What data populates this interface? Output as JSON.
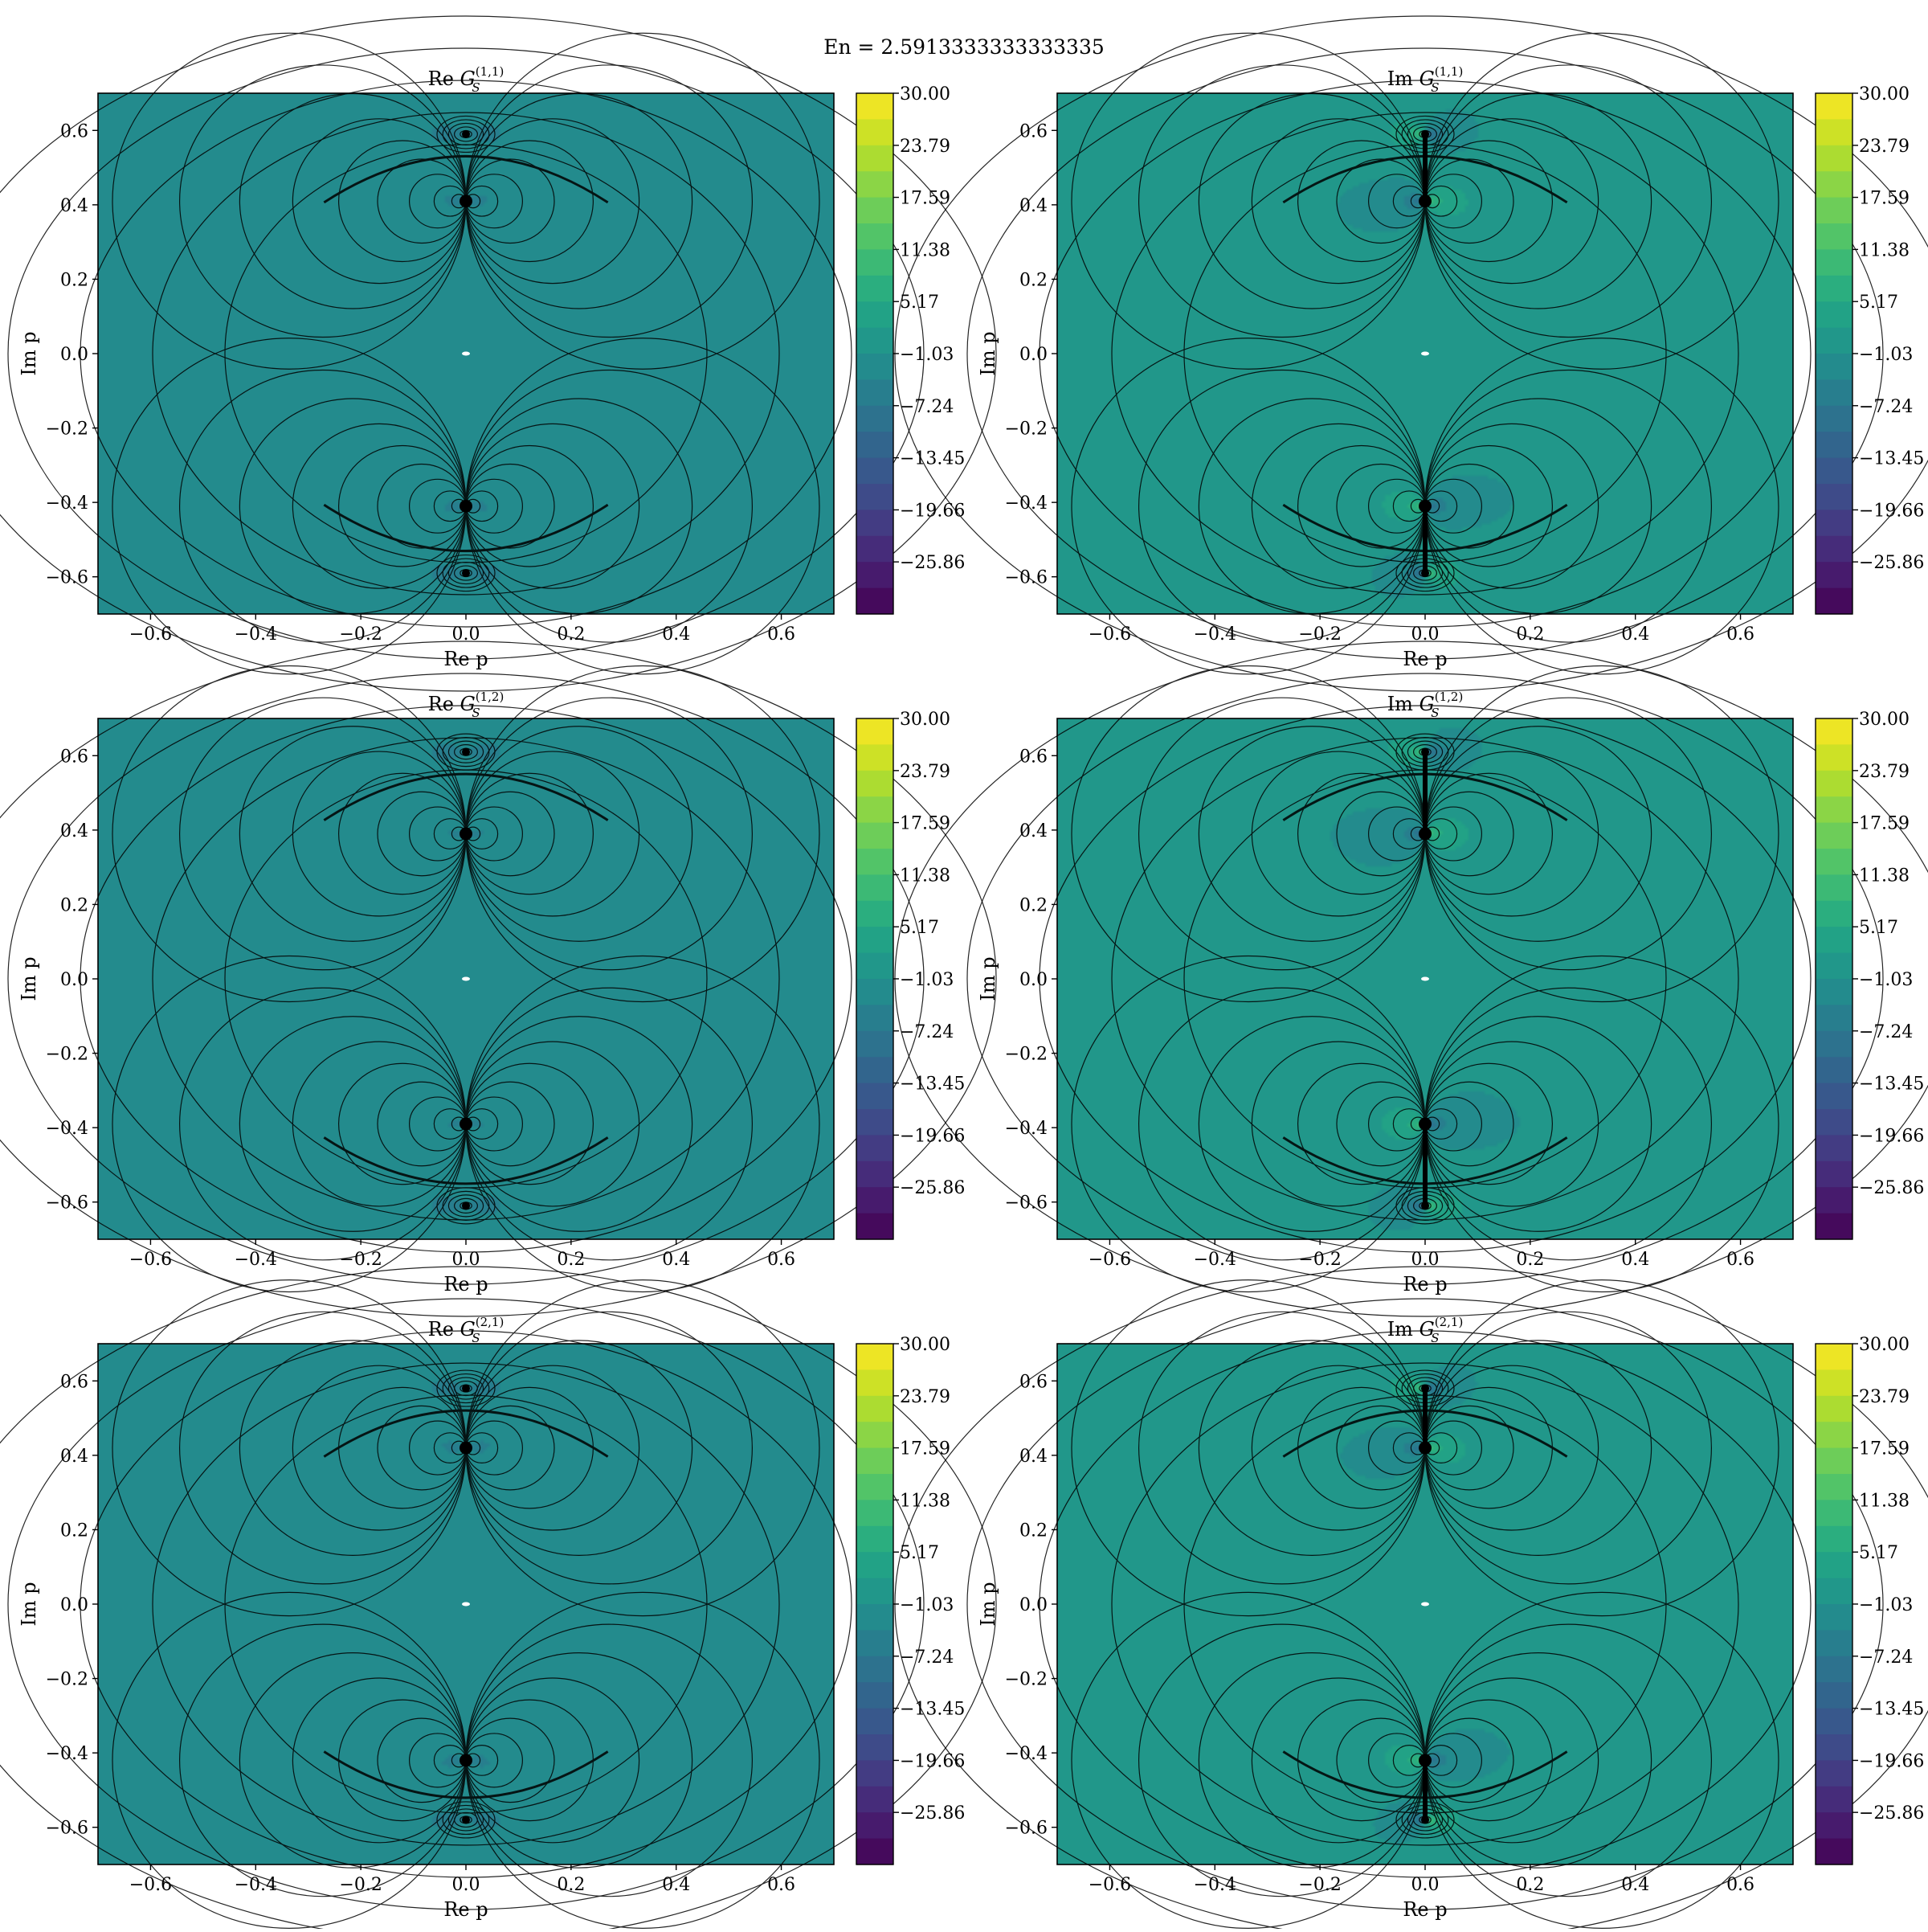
{
  "figure_title": "En = 2.5913333333333335",
  "colormap": {
    "name": "viridis",
    "stops": [
      "#440154",
      "#482475",
      "#414487",
      "#355f8d",
      "#2a788e",
      "#21918c",
      "#22a884",
      "#44bf70",
      "#7ad151",
      "#bddf26",
      "#fde725"
    ],
    "vmin": -32.07,
    "vmax": 30.0,
    "tick_labels": [
      "30.00",
      "23.79",
      "17.59",
      "11.38",
      "5.17",
      "−1.03",
      "−7.24",
      "−13.45",
      "−19.66",
      "−25.86"
    ],
    "tick_values": [
      30.0,
      23.79,
      17.59,
      11.38,
      5.17,
      -1.03,
      -7.24,
      -13.45,
      -19.66,
      -25.86
    ]
  },
  "axes_common": {
    "xlabel": "Re p",
    "ylabel": "Im p",
    "xlim": [
      -0.7,
      0.7
    ],
    "ylim": [
      -0.7,
      0.7
    ],
    "x_tick_values": [
      -0.6,
      -0.4,
      -0.2,
      0.0,
      0.2,
      0.4,
      0.6
    ],
    "x_tick_labels": [
      "−0.6",
      "−0.4",
      "−0.2",
      "0.0",
      "0.2",
      "0.4",
      "0.6"
    ],
    "y_tick_values": [
      0.6,
      0.4,
      0.2,
      0.0,
      -0.2,
      -0.4,
      -0.6
    ],
    "y_tick_labels": [
      "0.6",
      "0.4",
      "0.2",
      "0.0",
      "−0.2",
      "−0.4",
      "−0.6"
    ]
  },
  "chart_data": [
    {
      "type": "heatmap",
      "title_prefix": "Re",
      "title_symbol": "G",
      "title_sub": "S",
      "title_sup": "(1,1)",
      "part": "real",
      "pole_inner": 0.41,
      "pole_outer": 0.59,
      "plateau": -4.0
    },
    {
      "type": "heatmap",
      "title_prefix": "Im",
      "title_symbol": "G",
      "title_sub": "S",
      "title_sup": "(1,1)",
      "part": "imag",
      "pole_inner": 0.41,
      "pole_outer": 0.59,
      "plateau": 0.0
    },
    {
      "type": "heatmap",
      "title_prefix": "Re",
      "title_symbol": "G",
      "title_sub": "S",
      "title_sup": "(1,2)",
      "part": "real",
      "pole_inner": 0.39,
      "pole_outer": 0.61,
      "plateau": -4.0
    },
    {
      "type": "heatmap",
      "title_prefix": "Im",
      "title_symbol": "G",
      "title_sub": "S",
      "title_sup": "(1,2)",
      "part": "imag",
      "pole_inner": 0.39,
      "pole_outer": 0.61,
      "plateau": 0.0
    },
    {
      "type": "heatmap",
      "title_prefix": "Re",
      "title_symbol": "G",
      "title_sub": "S",
      "title_sup": "(2,1)",
      "part": "real",
      "pole_inner": 0.42,
      "pole_outer": 0.58,
      "plateau": -4.0
    },
    {
      "type": "heatmap",
      "title_prefix": "Im",
      "title_symbol": "G",
      "title_sub": "S",
      "title_sup": "(2,1)",
      "part": "imag",
      "pole_inner": 0.42,
      "pole_outer": 0.58,
      "plateau": 0.0
    }
  ]
}
